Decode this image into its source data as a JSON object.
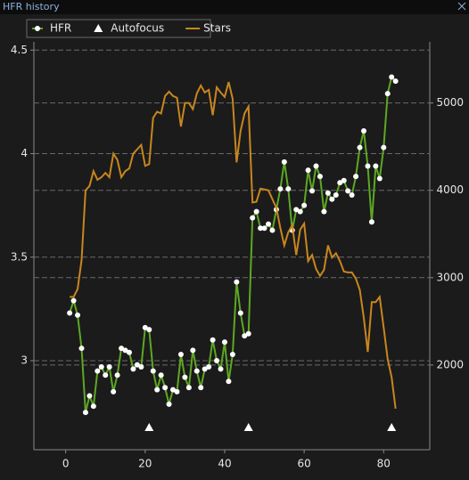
{
  "window": {
    "title": "HFR history"
  },
  "chart_data": {
    "type": "line",
    "x": [
      1,
      2,
      3,
      4,
      5,
      6,
      7,
      8,
      9,
      10,
      11,
      12,
      13,
      14,
      15,
      16,
      17,
      18,
      19,
      20,
      21,
      22,
      23,
      24,
      25,
      26,
      27,
      28,
      29,
      30,
      31,
      32,
      33,
      34,
      35,
      36,
      37,
      38,
      39,
      40,
      41,
      42,
      43,
      44,
      45,
      46,
      47,
      48,
      49,
      50,
      51,
      52,
      53,
      54,
      55,
      56,
      57,
      58,
      59,
      60,
      61,
      62,
      63,
      64,
      65,
      66,
      67,
      68,
      69,
      70,
      71,
      72,
      73,
      74,
      75,
      76,
      77,
      78,
      79,
      80,
      81,
      82,
      83
    ],
    "series": [
      {
        "name": "HFR",
        "color": "#5da823",
        "marker_color": "#ffffff",
        "axis": "y",
        "values": [
          3.23,
          3.29,
          3.22,
          3.06,
          2.75,
          2.83,
          2.78,
          2.95,
          2.97,
          2.93,
          2.97,
          2.85,
          2.93,
          3.06,
          3.05,
          3.04,
          2.96,
          2.98,
          2.97,
          3.16,
          3.15,
          2.95,
          2.86,
          2.93,
          2.87,
          2.79,
          2.86,
          2.85,
          3.03,
          2.92,
          2.87,
          3.05,
          2.95,
          2.87,
          2.96,
          2.97,
          3.1,
          3.0,
          2.96,
          3.09,
          2.9,
          3.03,
          3.38,
          3.23,
          3.12,
          3.13,
          3.69,
          3.72,
          3.64,
          3.64,
          3.66,
          3.63,
          3.73,
          3.83,
          3.96,
          3.83,
          3.63,
          3.73,
          3.72,
          3.75,
          3.92,
          3.82,
          3.94,
          3.89,
          3.72,
          3.81,
          3.78,
          3.8,
          3.86,
          3.87,
          3.82,
          3.8,
          3.89,
          4.03,
          4.11,
          3.94,
          3.67,
          3.94,
          3.88,
          4.03,
          4.29,
          4.37,
          4.35
        ]
      },
      {
        "name": "Autofocus",
        "color": "#ffffff",
        "x": [
          21,
          46,
          82
        ]
      },
      {
        "name": "Stars",
        "color": "#c8861e",
        "axis": "y2",
        "values": [
          2780,
          2780,
          2870,
          3200,
          4000,
          4050,
          4220,
          4120,
          4150,
          4200,
          4150,
          4420,
          4350,
          4150,
          4220,
          4250,
          4420,
          4470,
          4520,
          4280,
          4300,
          4830,
          4900,
          4880,
          5080,
          5130,
          5080,
          5060,
          4730,
          5000,
          5000,
          4930,
          5110,
          5200,
          5120,
          5150,
          4860,
          5180,
          5120,
          5070,
          5240,
          5050,
          4320,
          4680,
          4880,
          4960,
          3860,
          3870,
          4020,
          4010,
          4000,
          3900,
          3800,
          3570,
          3370,
          3520,
          3600,
          3260,
          3550,
          3620,
          3190,
          3260,
          3100,
          3020,
          3090,
          3370,
          3230,
          3280,
          3190,
          3070,
          3060,
          3060,
          2990,
          2860,
          2540,
          2150,
          2720,
          2720,
          2780,
          2430,
          2070,
          1860,
          1500
        ]
      }
    ],
    "xlim": [
      -8,
      91.6
    ],
    "xticks": [
      0,
      20,
      40,
      60,
      80
    ],
    "ylim": [
      2.57,
      4.54
    ],
    "yticks": [
      3,
      3.5,
      4,
      4.5
    ],
    "y2lim": [
      1030,
      5700
    ],
    "y2ticks": [
      2000,
      3000,
      4000,
      5000
    ],
    "grid": true,
    "legend": "top-left"
  }
}
